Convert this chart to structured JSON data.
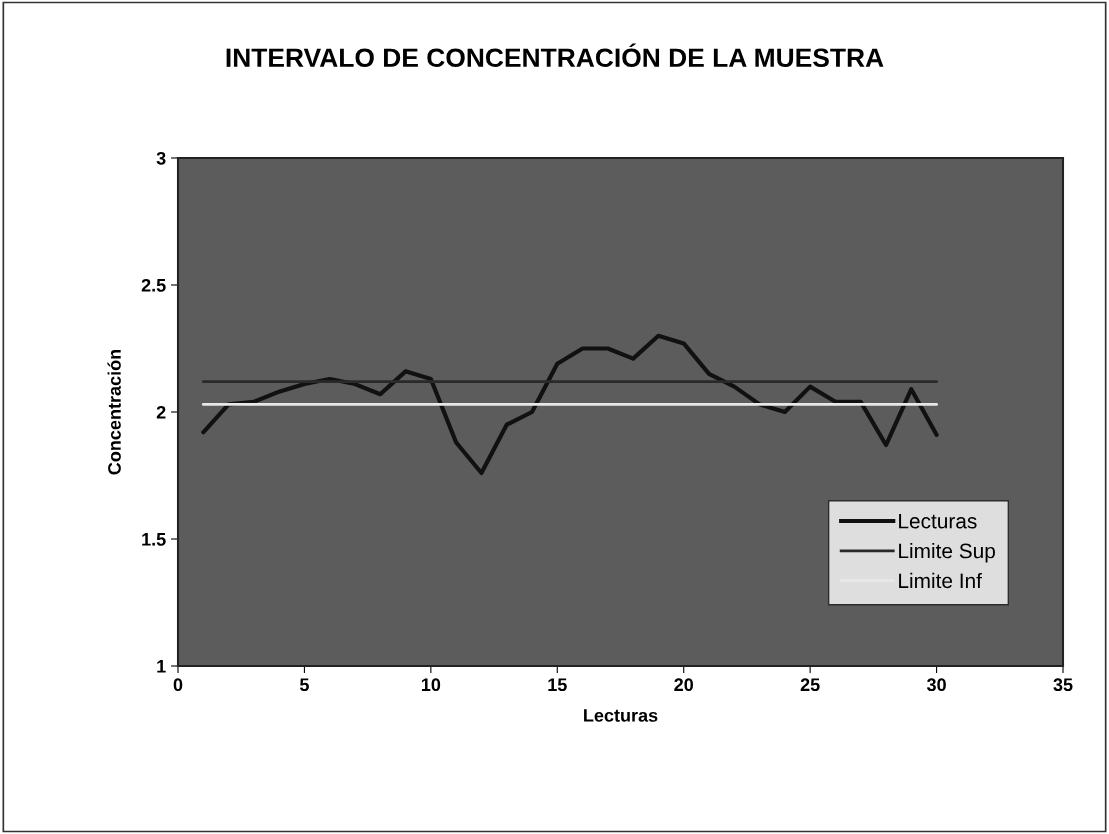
{
  "chart_data": {
    "type": "line",
    "title": "INTERVALO DE CONCENTRACIÓN DE LA MUESTRA",
    "xlabel": "Lecturas",
    "ylabel": "Concentración",
    "series": [
      {
        "name": "Lecturas",
        "color": "#111111",
        "x": [
          1,
          2,
          3,
          4,
          5,
          6,
          7,
          8,
          9,
          10,
          11,
          12,
          13,
          14,
          15,
          16,
          17,
          18,
          19,
          20,
          21,
          22,
          23,
          24,
          25,
          26,
          27,
          28,
          29,
          30
        ],
        "values": [
          1.92,
          2.03,
          2.04,
          2.08,
          2.11,
          2.13,
          2.11,
          2.07,
          2.16,
          2.13,
          1.88,
          1.76,
          1.95,
          2.0,
          2.19,
          2.25,
          2.25,
          2.21,
          2.3,
          2.27,
          2.15,
          2.1,
          2.03,
          2.0,
          2.1,
          2.04,
          2.04,
          1.87,
          2.09,
          1.91
        ]
      },
      {
        "name": "Limite Sup",
        "color": "#2a2a2a",
        "x": [
          1,
          30
        ],
        "values": [
          2.12,
          2.12
        ]
      },
      {
        "name": "Limite Inf",
        "color": "#e8e8e8",
        "x": [
          1,
          30
        ],
        "values": [
          2.03,
          2.03
        ]
      }
    ],
    "xlim": [
      0,
      35
    ],
    "xticks": [
      0,
      5,
      10,
      15,
      20,
      25,
      30,
      35
    ],
    "ylim": [
      1,
      3
    ],
    "yticks": [
      1,
      1.5,
      2,
      2.5,
      3
    ],
    "grid": false,
    "legend": "bottom right",
    "marker": "none",
    "line_style": "solid"
  }
}
